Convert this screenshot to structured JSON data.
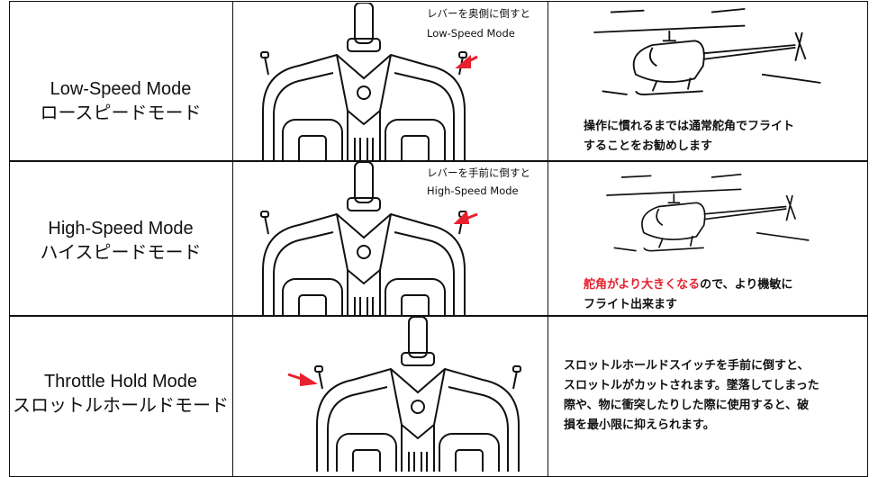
{
  "rows": [
    {
      "title": "Low-Speed Mode",
      "subtitle": "ロースピードモード",
      "lever_note": [
        "レバーを奥側に倒すと",
        "Low-Speed Mode"
      ],
      "description": [
        "操作に慣れるまでは通常舵角でフライト",
        "することをお勧めします"
      ]
    },
    {
      "title": "High-Speed Mode",
      "subtitle": "ハイスピードモード",
      "lever_note": [
        "レバーを手前に倒すと",
        "High-Speed Mode"
      ],
      "description_highlight": "舵角がより大きくなる",
      "description": [
        "ので、より機敏に",
        "フライト出来ます"
      ]
    },
    {
      "title": "Throttle Hold Mode",
      "subtitle": "スロットルホールドモード",
      "description": [
        "スロットルホールドスイッチを手前に倒すと、",
        "スロットルがカットされます。墜落してしまった",
        "際や、物に衝突したりした際に使用すると、破",
        "損を最小限に抑えられます。"
      ]
    }
  ]
}
